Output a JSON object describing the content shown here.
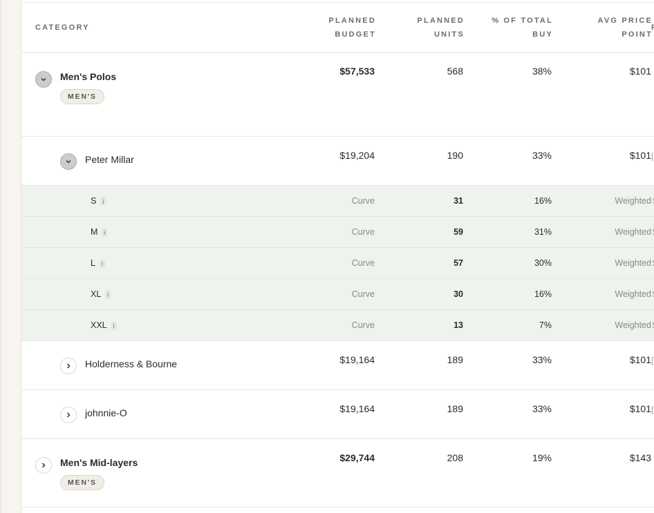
{
  "columns": {
    "category": "CATEGORY",
    "budget_l1": "PLANNED",
    "budget_l2": "BUDGET",
    "units_l1": "PLANNED",
    "units_l2": "UNITS",
    "pct_l1": "% OF TOTAL",
    "pct_l2": "BUY",
    "avg_l1": "AVG PRICE",
    "avg_l2": "POINT",
    "clipped": "F"
  },
  "rows": {
    "mens_polos": {
      "name": "Men's Polos",
      "tag": "MEN'S",
      "budget": "$57,533",
      "units": "568",
      "pct": "38%",
      "avg": "$101"
    },
    "peter_millar": {
      "name": "Peter Millar",
      "budget": "$19,204",
      "units": "190",
      "pct": "33%",
      "avg": "$101",
      "clip": "["
    },
    "sizes": [
      {
        "label": "S",
        "info": "i",
        "budget": "Curve",
        "units": "31",
        "pct": "16%",
        "avg": "Weighted",
        "clip": "S"
      },
      {
        "label": "M",
        "info": "i",
        "budget": "Curve",
        "units": "59",
        "pct": "31%",
        "avg": "Weighted",
        "clip": "S"
      },
      {
        "label": "L",
        "info": "i",
        "budget": "Curve",
        "units": "57",
        "pct": "30%",
        "avg": "Weighted",
        "clip": "S"
      },
      {
        "label": "XL",
        "info": "i",
        "budget": "Curve",
        "units": "30",
        "pct": "16%",
        "avg": "Weighted",
        "clip": "S"
      },
      {
        "label": "XXL",
        "info": "i",
        "budget": "Curve",
        "units": "13",
        "pct": "7%",
        "avg": "Weighted",
        "clip": "S"
      }
    ],
    "holderness": {
      "name": "Holderness & Bourne",
      "budget": "$19,164",
      "units": "189",
      "pct": "33%",
      "avg": "$101",
      "clip": "["
    },
    "johnnie": {
      "name": "johnnie-O",
      "budget": "$19,164",
      "units": "189",
      "pct": "33%",
      "avg": "$101",
      "clip": "["
    },
    "mens_midlayers": {
      "name": "Men's Mid-layers",
      "tag": "MEN'S",
      "budget": "$29,744",
      "units": "208",
      "pct": "19%",
      "avg": "$143"
    }
  },
  "icons": {
    "expanded": "chevron-down-icon",
    "collapsed": "chevron-right-icon",
    "info": "info-icon"
  }
}
